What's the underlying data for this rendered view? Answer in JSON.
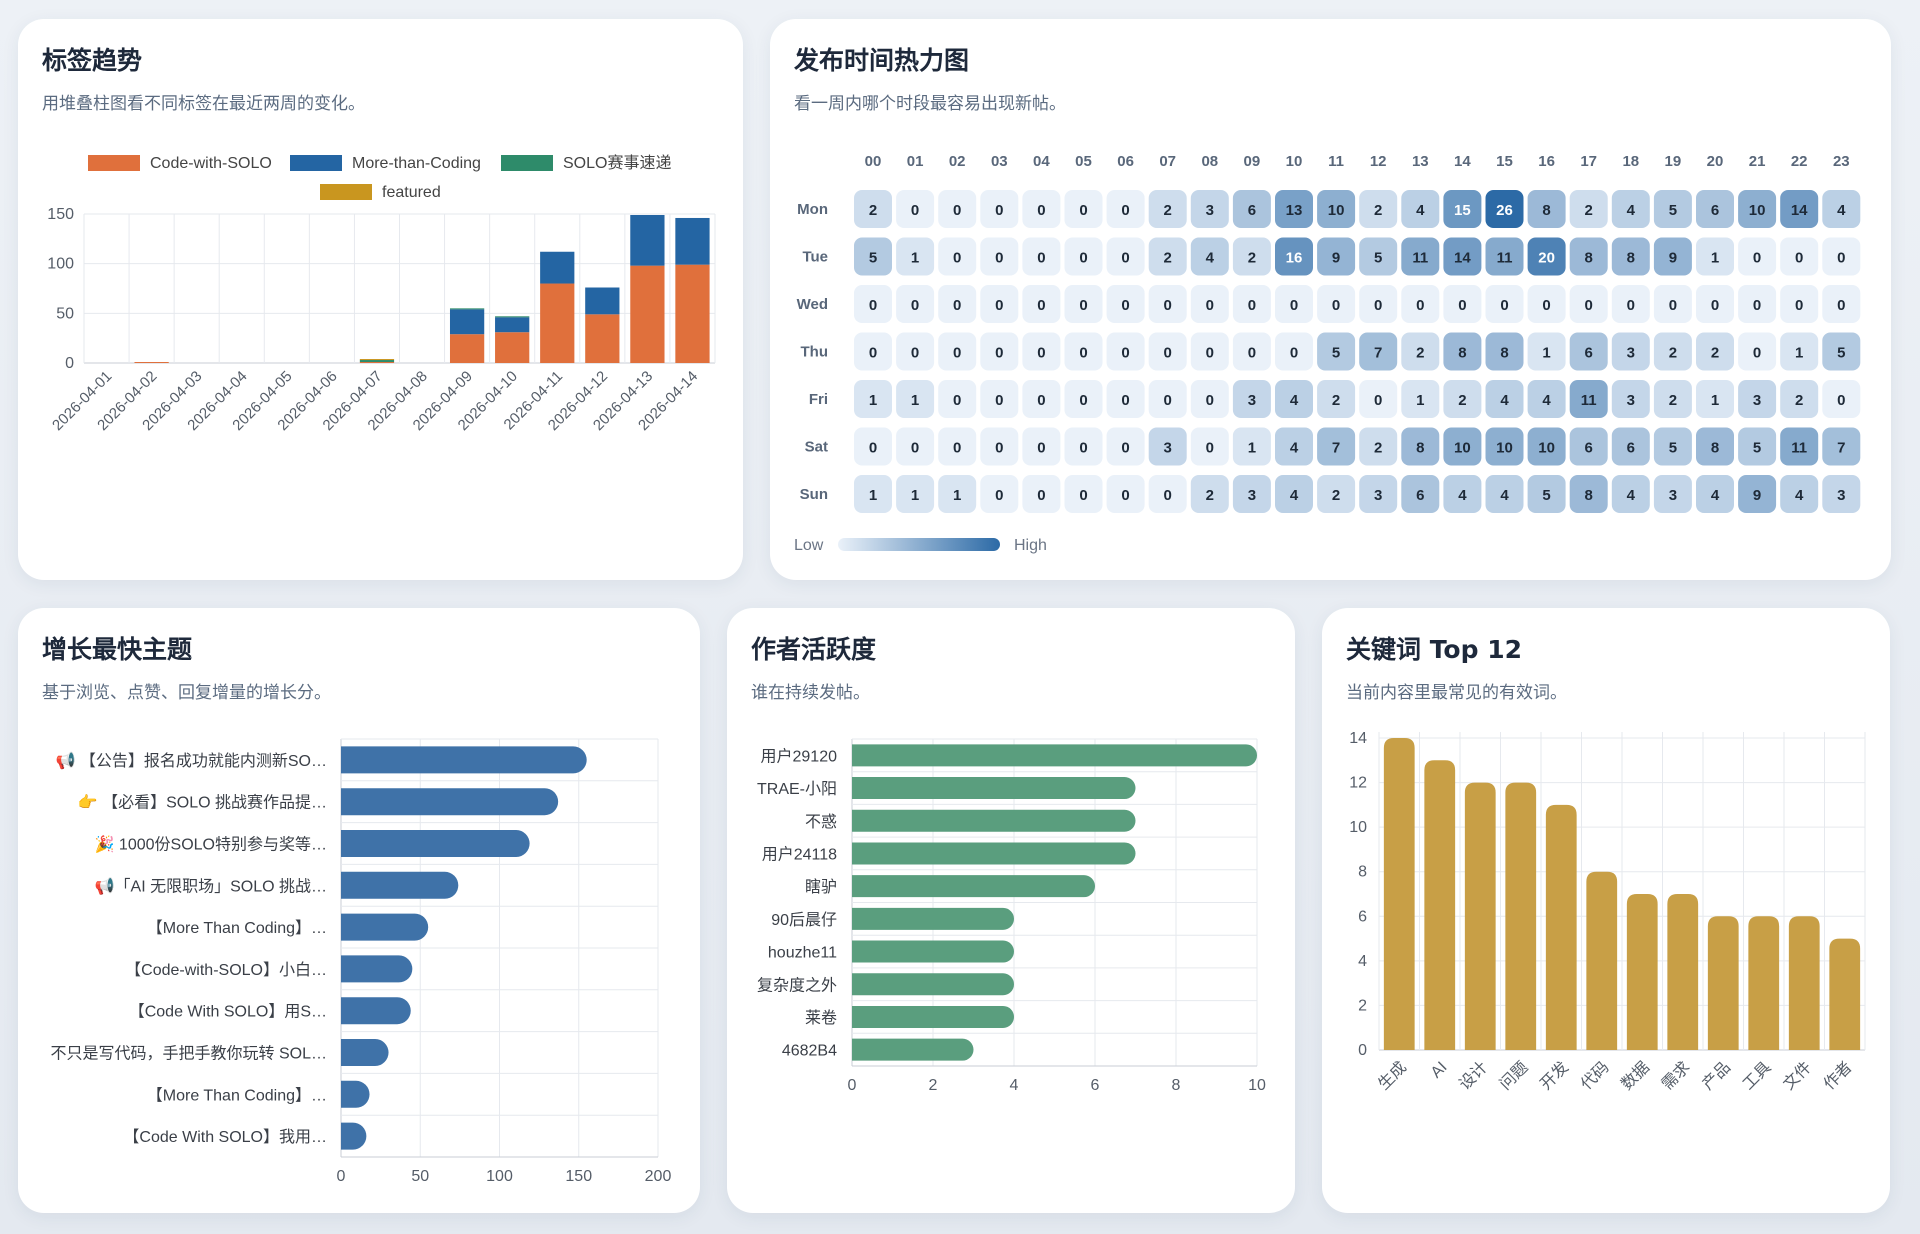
{
  "cards": {
    "trend": {
      "title": "标签趋势",
      "subtitle": "用堆叠柱图看不同标签在最近两周的变化。"
    },
    "heatmap": {
      "title": "发布时间热力图",
      "subtitle": "看一周内哪个时段最容易出现新帖。"
    },
    "growth": {
      "title": "增长最快主题",
      "subtitle": "基于浏览、点赞、回复增量的增长分。"
    },
    "authors": {
      "title": "作者活跃度",
      "subtitle": "谁在持续发帖。"
    },
    "keywords": {
      "title": "关键词 Top 12",
      "subtitle": "当前内容里最常见的有效词。"
    }
  },
  "chart_data": [
    {
      "id": "trend",
      "type": "bar",
      "stacked": true,
      "categories": [
        "2026-04-01",
        "2026-04-02",
        "2026-04-03",
        "2026-04-04",
        "2026-04-05",
        "2026-04-06",
        "2026-04-07",
        "2026-04-08",
        "2026-04-09",
        "2026-04-10",
        "2026-04-11",
        "2026-04-12",
        "2026-04-13",
        "2026-04-14"
      ],
      "series": [
        {
          "name": "Code-with-SOLO",
          "color": "#e0703c",
          "values": [
            0,
            1,
            0,
            0,
            0,
            0,
            1,
            0,
            29,
            31,
            80,
            49,
            98,
            99
          ]
        },
        {
          "name": "More-than-Coding",
          "color": "#2465a3",
          "values": [
            0,
            0,
            0,
            0,
            0,
            0,
            0,
            0,
            25,
            15,
            32,
            27,
            51,
            47
          ]
        },
        {
          "name": "SOLO赛事速递",
          "color": "#2e8b6a",
          "values": [
            0,
            0,
            0,
            0,
            0,
            0,
            2,
            0,
            1,
            1,
            0,
            0,
            0,
            0
          ]
        },
        {
          "name": "featured",
          "color": "#c9961f",
          "values": [
            0,
            0,
            0,
            0,
            0,
            0,
            1,
            0,
            0,
            0,
            0,
            0,
            0,
            0
          ]
        }
      ],
      "ylim": [
        0,
        150
      ],
      "yticks": [
        0,
        50,
        100,
        150
      ],
      "grid": true,
      "legend": "top"
    },
    {
      "id": "heatmap",
      "type": "heatmap",
      "x": [
        "00",
        "01",
        "02",
        "03",
        "04",
        "05",
        "06",
        "07",
        "08",
        "09",
        "10",
        "11",
        "12",
        "13",
        "14",
        "15",
        "16",
        "17",
        "18",
        "19",
        "20",
        "21",
        "22",
        "23"
      ],
      "y": [
        "Mon",
        "Tue",
        "Wed",
        "Thu",
        "Fri",
        "Sat",
        "Sun"
      ],
      "values": [
        [
          2,
          0,
          0,
          0,
          0,
          0,
          0,
          2,
          3,
          6,
          13,
          10,
          2,
          4,
          15,
          26,
          8,
          2,
          4,
          5,
          6,
          10,
          14,
          4
        ],
        [
          5,
          1,
          0,
          0,
          0,
          0,
          0,
          2,
          4,
          2,
          16,
          9,
          5,
          11,
          14,
          11,
          20,
          8,
          8,
          9,
          1,
          0,
          0,
          0
        ],
        [
          0,
          0,
          0,
          0,
          0,
          0,
          0,
          0,
          0,
          0,
          0,
          0,
          0,
          0,
          0,
          0,
          0,
          0,
          0,
          0,
          0,
          0,
          0,
          0
        ],
        [
          0,
          0,
          0,
          0,
          0,
          0,
          0,
          0,
          0,
          0,
          0,
          5,
          7,
          2,
          8,
          8,
          1,
          6,
          3,
          2,
          2,
          0,
          1,
          5
        ],
        [
          1,
          1,
          0,
          0,
          0,
          0,
          0,
          0,
          0,
          3,
          4,
          2,
          0,
          1,
          2,
          4,
          4,
          11,
          3,
          2,
          1,
          3,
          2,
          0
        ],
        [
          0,
          0,
          0,
          0,
          0,
          0,
          0,
          3,
          0,
          1,
          4,
          7,
          2,
          8,
          10,
          10,
          10,
          6,
          6,
          5,
          8,
          5,
          11,
          7
        ],
        [
          1,
          1,
          1,
          0,
          0,
          0,
          0,
          0,
          2,
          3,
          4,
          2,
          3,
          6,
          4,
          4,
          5,
          8,
          4,
          3,
          4,
          9,
          4,
          3
        ]
      ],
      "legend": {
        "low": "Low",
        "high": "High"
      }
    },
    {
      "id": "growth",
      "type": "bar",
      "orientation": "horizontal",
      "categories": [
        "📢 【公告】报名成功就能内测新SO…",
        "👉 【必看】SOLO 挑战赛作品提…",
        "🎉 1000份SOLO特别参与奖等…",
        "📢「AI 无限职场」SOLO 挑战…",
        "【More Than Coding】…",
        "【Code-with-SOLO】小白…",
        "【Code With SOLO】用S…",
        "不只是写代码，手把手教你玩转 SOL…",
        "【More Than Coding】…",
        "【Code With SOLO】我用…"
      ],
      "values": [
        155,
        137,
        119,
        74,
        55,
        45,
        44,
        30,
        18,
        16
      ],
      "xlim": [
        0,
        200
      ],
      "xticks": [
        0,
        50,
        100,
        150,
        200
      ],
      "color": "#3f72a8",
      "grid": true
    },
    {
      "id": "authors",
      "type": "bar",
      "orientation": "horizontal",
      "categories": [
        "用户29120",
        "TRAE-小阳",
        "不惑",
        "用户24118",
        "瞎驴",
        "90后晨仔",
        "houzhe11",
        "复杂度之外",
        "莱卷",
        "4682B4"
      ],
      "values": [
        10,
        7,
        7,
        7,
        6,
        4,
        4,
        4,
        4,
        3
      ],
      "xlim": [
        0,
        10
      ],
      "xticks": [
        0,
        2,
        4,
        6,
        8,
        10
      ],
      "color": "#5a9e7e",
      "grid": true
    },
    {
      "id": "keywords",
      "type": "bar",
      "categories": [
        "生成",
        "AI",
        "设计",
        "问题",
        "开发",
        "代码",
        "数据",
        "需求",
        "产品",
        "工具",
        "文件",
        "作者"
      ],
      "values": [
        14,
        13,
        12,
        12,
        11,
        8,
        7,
        7,
        6,
        6,
        6,
        5
      ],
      "ylim": [
        0,
        14
      ],
      "yticks": [
        0,
        2,
        4,
        6,
        8,
        10,
        12,
        14
      ],
      "color": "#c89f46",
      "grid": true
    }
  ]
}
